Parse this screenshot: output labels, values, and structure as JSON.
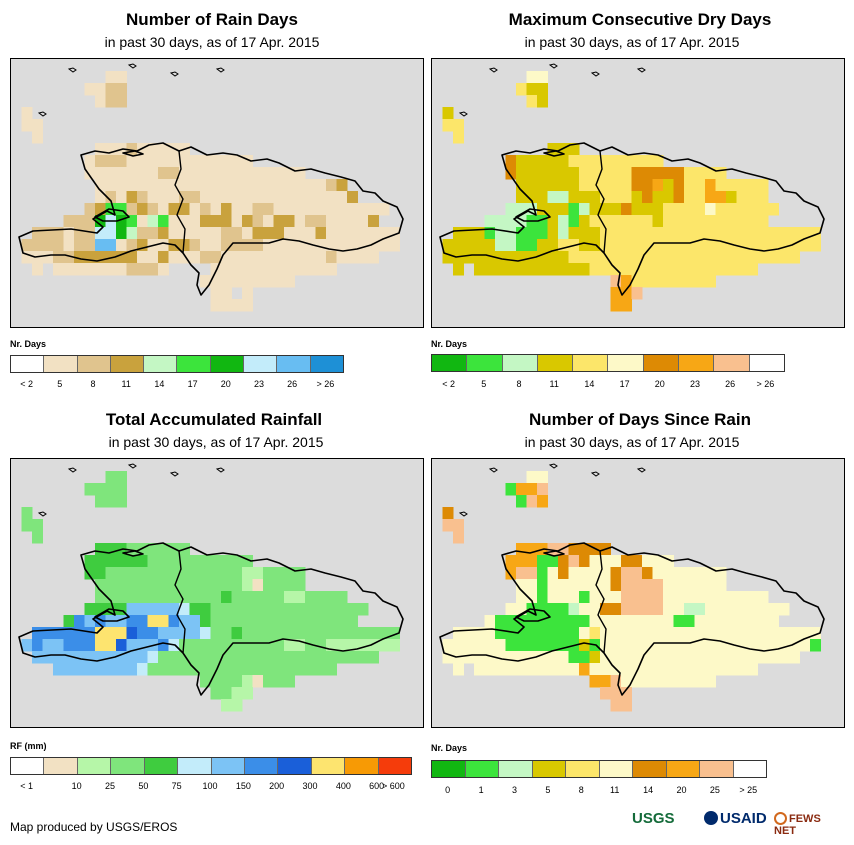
{
  "panels": [
    {
      "id": "rain-days",
      "title": "Number of Rain Days",
      "subtitle": "in past 30 days, as of 17 Apr. 2015",
      "legend_title": "Nr. Days",
      "legend_colors": [
        "#ffffff",
        "#f2e1c3",
        "#e0c48e",
        "#c9a23d",
        "#c4f7c4",
        "#3ce43c",
        "#11b711",
        "#c3ecfa",
        "#68bdf2",
        "#1e90d6"
      ],
      "legend_labels": [
        "< 2",
        "5",
        "8",
        "11",
        "14",
        "17",
        "20",
        "23",
        "26",
        "> 26"
      ],
      "label_mode": "center",
      "chart_data": {
        "type": "heatmap",
        "title": "Number of Rain Days",
        "subtitle": "in past 30 days, as of 17 Apr. 2015",
        "region": "Hispaniola",
        "classes": [
          "< 2",
          "5",
          "8",
          "11",
          "14",
          "17",
          "20",
          "23",
          "26",
          "> 26"
        ],
        "unit": "Nr. Days",
        "dominant_classes": [
          "5",
          "8",
          "11"
        ]
      },
      "grid": [
        "000000000000000000000000000000000000000",
        "000000000110000000000000000000000000000",
        "000000011220000000000000000000000000000",
        "000000001220000000000000000000000000000",
        "010000000000000000000000000000000000000",
        "011000000000000000000000000000000000000",
        "001000000000000000000000000000000000000",
        "000000001112111110000000000000000000000",
        "000000012221111111111110000000000000000",
        "000000011111112211111111111100000000000",
        "000000001111111111111111111111230000000",
        "000000001213211122111111111111113000000",
        "000000023552321331213112211111111111000",
        "000002226765145111333132133122111130000",
        "002221227764223111112213331113111111100",
        "022221228812311332112222111111111111100",
        "011122333333113111221111111111211110000",
        "001011111112221000011111111111100000000",
        "000000000000000000111111111000000000000",
        "000000000000000000011010000000000000000",
        "000000000000000000011110000000000000000",
        "000000000000000000000000000000000000000"
      ]
    },
    {
      "id": "dry-days",
      "title": "Maximum Consecutive Dry Days",
      "subtitle": "in past 30 days, as of 17 Apr. 2015",
      "legend_title": "Nr. Days",
      "legend_colors": [
        "#11b711",
        "#3ce43c",
        "#c4f7c4",
        "#d9c800",
        "#fce66a",
        "#fdf9c8",
        "#dd8a04",
        "#f7a715",
        "#f9c08f",
        "#ffffff"
      ],
      "legend_labels": [
        "< 2",
        "5",
        "8",
        "11",
        "14",
        "17",
        "20",
        "23",
        "26",
        "> 26"
      ],
      "label_mode": "center",
      "chart_data": {
        "type": "heatmap",
        "title": "Maximum Consecutive Dry Days",
        "subtitle": "in past 30 days, as of 17 Apr. 2015",
        "region": "Hispaniola",
        "classes": [
          "< 2",
          "5",
          "8",
          "11",
          "14",
          "17",
          "20",
          "23",
          "26",
          "> 26"
        ],
        "unit": "Nr. Days",
        "dominant_classes": [
          "8",
          "11",
          "14"
        ]
      },
      "grid": [
        "000000000000000000000000000000000000000",
        "000000000550000000000000000000000000000",
        "000000004330000000000000000000000000000",
        "000000000430000000000000000000000000000",
        "030000000000000000000000000000000000000",
        "044000000000000000000000000000000000000",
        "004000000000000000000000000000000000000",
        "000000000003330000000000000000000000000",
        "000000063333344444444400000000000000000",
        "000000063333334444466666444400000000000",
        "000000003333334444466736447444440000000",
        "000000003332233344436336447734440000000",
        "000000022233312333633344445444444000000",
        "000002222113213444444344444444440000000",
        "003331221113233344444444444444444444400",
        "033333221133443344444444444444444444400",
        "033333333333344444444444444444444440000",
        "003033333333333444444444444444400000000",
        "000000000000000008744444444000000000000",
        "000000000000000007780000000000000000000",
        "000000000000000007700000000000000000000",
        "000000000000000000000000000000000000000"
      ]
    },
    {
      "id": "rainfall",
      "title": "Total Accumulated Rainfall",
      "subtitle": "in past 30 days, as of 17 Apr. 2015",
      "legend_title": "RF (mm)",
      "legend_colors": [
        "#ffffff",
        "#f2e1c3",
        "#b6f6a8",
        "#7fe57c",
        "#3fcc3f",
        "#c3ecfa",
        "#7cc3f5",
        "#3b8ee8",
        "#1a5fd9",
        "#fde46f",
        "#f79a05",
        "#f53c0b"
      ],
      "legend_labels": [
        "< 1",
        "10",
        "25",
        "50",
        "75",
        "100",
        "150",
        "200",
        "300",
        "400",
        "600",
        "> 600"
      ],
      "label_mode": "edge",
      "chart_data": {
        "type": "heatmap",
        "title": "Total Accumulated Rainfall",
        "subtitle": "in past 30 days, as of 17 Apr. 2015",
        "region": "Hispaniola",
        "classes": [
          "< 1",
          "10",
          "25",
          "50",
          "75",
          "100",
          "150",
          "200",
          "300",
          "400",
          "600",
          "> 600"
        ],
        "unit": "RF (mm)",
        "dominant_classes": [
          "50",
          "75",
          "100",
          "150"
        ]
      },
      "grid": [
        "000000000000000000000000000000000000000",
        "000000000330000000000000000000000000000",
        "000000033330000000000000000000000000000",
        "000000003330000000000000000000000000000",
        "030000000000000000000000000000000000000",
        "033000000000000000000000000000000000000",
        "003000000000000000000000000000000000000",
        "000000004443333330000000000000000000000",
        "000000044444433333333330000000000000000",
        "000000044333333333333322333300000000000",
        "000000003333333333333321333300000000000",
        "000000003333333333334333332233330000000",
        "000000044446666654433333333333333300000",
        "000004767667799766433333333333333000000",
        "007777779998776666533433333333333333300",
        "067667779986667533333333332233222222200",
        "006666666666653333333333333333333330000",
        "000066666666533333333333333333300000000",
        "000000000000000000333321333000000000000",
        "000000000000000000033220000000000000000",
        "000000000000000000002200000000000000000",
        "000000000000000000000000000000000000000"
      ]
    },
    {
      "id": "days-since-rain",
      "title": "Number of Days Since Rain",
      "subtitle": "in past 30 days, as of 17 Apr. 2015",
      "legend_title": "Nr. Days",
      "legend_colors": [
        "#11b711",
        "#3ce43c",
        "#c4f7c4",
        "#d9c800",
        "#fce66a",
        "#fdf9c8",
        "#dd8a04",
        "#f7a715",
        "#f9c08f",
        "#ffffff"
      ],
      "legend_labels": [
        "0",
        "1",
        "3",
        "5",
        "8",
        "11",
        "14",
        "20",
        "25",
        "> 25"
      ],
      "label_mode": "center",
      "chart_data": {
        "type": "heatmap",
        "title": "Number of Days Since Rain",
        "subtitle": "in past 30 days, as of 17 Apr. 2015",
        "region": "Hispaniola",
        "classes": [
          "0",
          "1",
          "3",
          "5",
          "8",
          "11",
          "14",
          "20",
          "25",
          "> 25"
        ],
        "unit": "Nr. Days",
        "dominant_classes": [
          "0",
          "8",
          "11",
          "20"
        ]
      },
      "grid": [
        "000000000000000000000000000000000000000",
        "000000000550000000000000000000000000000",
        "000000017780000000000000000000000000000",
        "000000001870000000000000000000000000000",
        "060000000000000000000000000000000000000",
        "088000000000000000000000000000000000000",
        "008000000000000000000000000000000000000",
        "000000007778866660000000000000000000000",
        "000000077711686555665550000000000000000",
        "000000078815655556886555555500000000000",
        "000000005515555556888855555500000000000",
        "000000005515551555888855555555550000000",
        "000000055111125566888855225555555500000",
        "000005111111111555555551155555555000000",
        "005555111111115455555555555555555555500",
        "055555511111113155555555555555555555100",
        "055555555555511355555555555555555550000",
        "005055555555557555555555555555500000000",
        "000000000000000778555555555000000000000",
        "000000000000000088800000000000000000000",
        "000000000000000008800000000000000000000",
        "000000000000000000000000000000000000000"
      ]
    }
  ],
  "footer": {
    "credit": "Map produced by USGS/EROS",
    "logos": [
      "USGS",
      "USAID",
      "FEWS NET"
    ]
  }
}
